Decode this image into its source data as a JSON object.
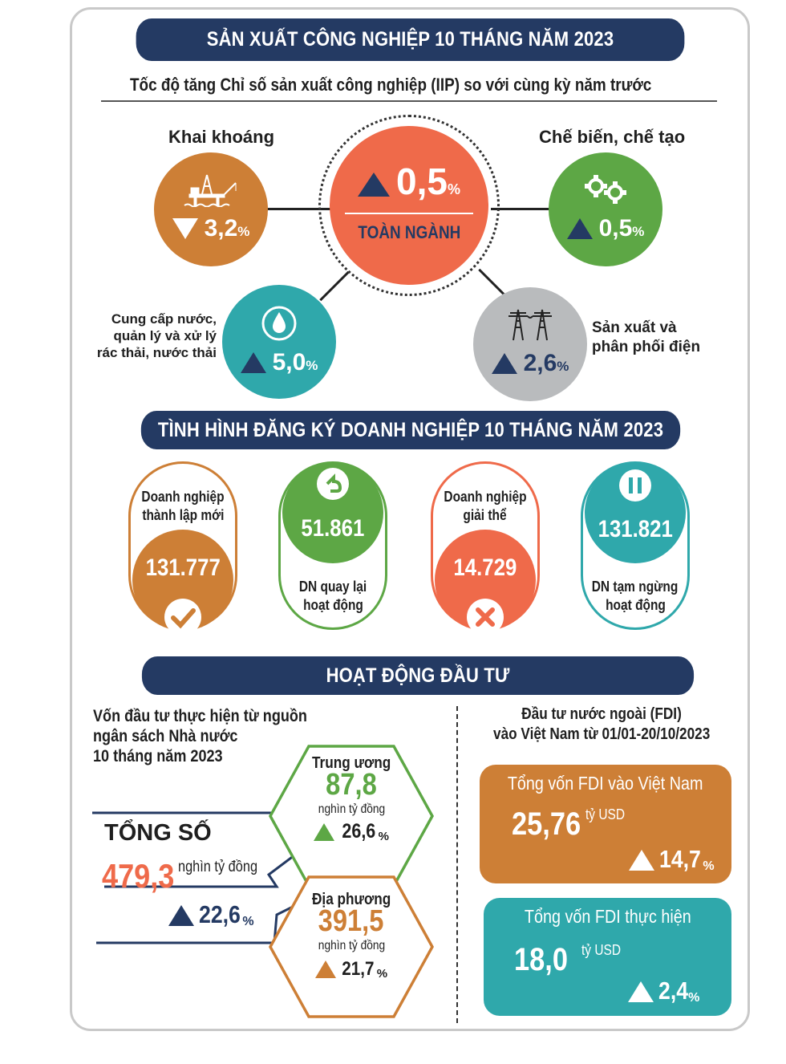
{
  "sections": {
    "industry_title": "SẢN XUẤT CÔNG NGHIỆP 10 THÁNG NĂM 2023",
    "iip_subtitle": "Tốc độ tăng Chỉ số sản xuất công nghiệp (IIP) so với cùng kỳ năm trước",
    "business_title": "TÌNH HÌNH ĐĂNG KÝ DOANH NGHIỆP 10 THÁNG NĂM 2023",
    "investment_title": "HOẠT ĐỘNG ĐẦU TƯ"
  },
  "iip": {
    "center": {
      "value": "0,5",
      "unit": "%",
      "label": "TOÀN NGÀNH",
      "color": "#ef6a4a",
      "direction": "up"
    },
    "mining": {
      "label": "Khai khoáng",
      "value": "3,2",
      "unit": "%",
      "color": "#cd7f36",
      "direction": "down",
      "icon": "oil-rig-icon"
    },
    "manufacturing": {
      "label": "Chế biến, chế tạo",
      "value": "0,5",
      "unit": "%",
      "color": "#5da745",
      "direction": "up",
      "icon": "gears-icon"
    },
    "water": {
      "label_lines": [
        "Cung cấp nước,",
        "quản lý và xử lý",
        "rác thải, nước thải"
      ],
      "value": "5,0",
      "unit": "%",
      "color": "#2fa8ab",
      "direction": "up",
      "icon": "water-drop-icon"
    },
    "electricity": {
      "label_lines": [
        "Sản xuất và",
        "phân phối điện"
      ],
      "value": "2,6",
      "unit": "%",
      "color": "#b9bbbd",
      "direction": "up",
      "icon": "power-tower-icon"
    }
  },
  "business": {
    "new": {
      "label_lines": [
        "Doanh nghiệp",
        "thành lập mới"
      ],
      "value": "131.777",
      "color": "#cd7f36",
      "icon": "check-icon"
    },
    "returned": {
      "label_lines": [
        "DN quay lại",
        "hoạt động"
      ],
      "value": "51.861",
      "color": "#5da745",
      "icon": "return-arrow-icon"
    },
    "dissolved": {
      "label_lines": [
        "Doanh nghiệp",
        "giải thể"
      ],
      "value": "14.729",
      "color": "#ef6a4a",
      "icon": "cross-icon"
    },
    "suspended": {
      "label_lines": [
        "DN tạm ngừng",
        "hoạt động"
      ],
      "value": "131.821",
      "color": "#2fa8ab",
      "icon": "pause-icon"
    }
  },
  "investment": {
    "budget_title_lines": [
      "Vốn đầu tư thực hiện từ nguồn",
      "ngân sách Nhà nước",
      "10 tháng năm 2023"
    ],
    "total": {
      "label": "TỔNG SỐ",
      "value": "479,3",
      "unit": "nghìn tỷ đồng",
      "growth": "22,6",
      "growth_unit": "%"
    },
    "central": {
      "label": "Trung ương",
      "value": "87,8",
      "unit": "nghìn tỷ đồng",
      "growth": "26,6",
      "growth_unit": "%",
      "color": "#5da745"
    },
    "local": {
      "label": "Địa phương",
      "value": "391,5",
      "unit": "nghìn tỷ đồng",
      "growth": "21,7",
      "growth_unit": "%",
      "color": "#cd7f36"
    },
    "fdi_title_lines": [
      "Đầu tư nước ngoài (FDI)",
      "vào Việt Nam từ 01/01-20/10/2023"
    ],
    "fdi_registered": {
      "label": "Tổng vốn FDI vào Việt Nam",
      "value": "25,76",
      "unit": "tỷ USD",
      "growth": "14,7",
      "growth_unit": "%",
      "color": "#cd7f36"
    },
    "fdi_disbursed": {
      "label": "Tổng vốn FDI thực hiện",
      "value": "18,0",
      "unit": "tỷ USD",
      "growth": "2,4",
      "growth_unit": "%",
      "color": "#2fa8ab"
    }
  },
  "colors": {
    "navy": "#243a63",
    "orange": "#cd7f36",
    "coral": "#ef6a4a",
    "green": "#5da745",
    "teal": "#2fa8ab",
    "gray": "#b9bbbd"
  }
}
